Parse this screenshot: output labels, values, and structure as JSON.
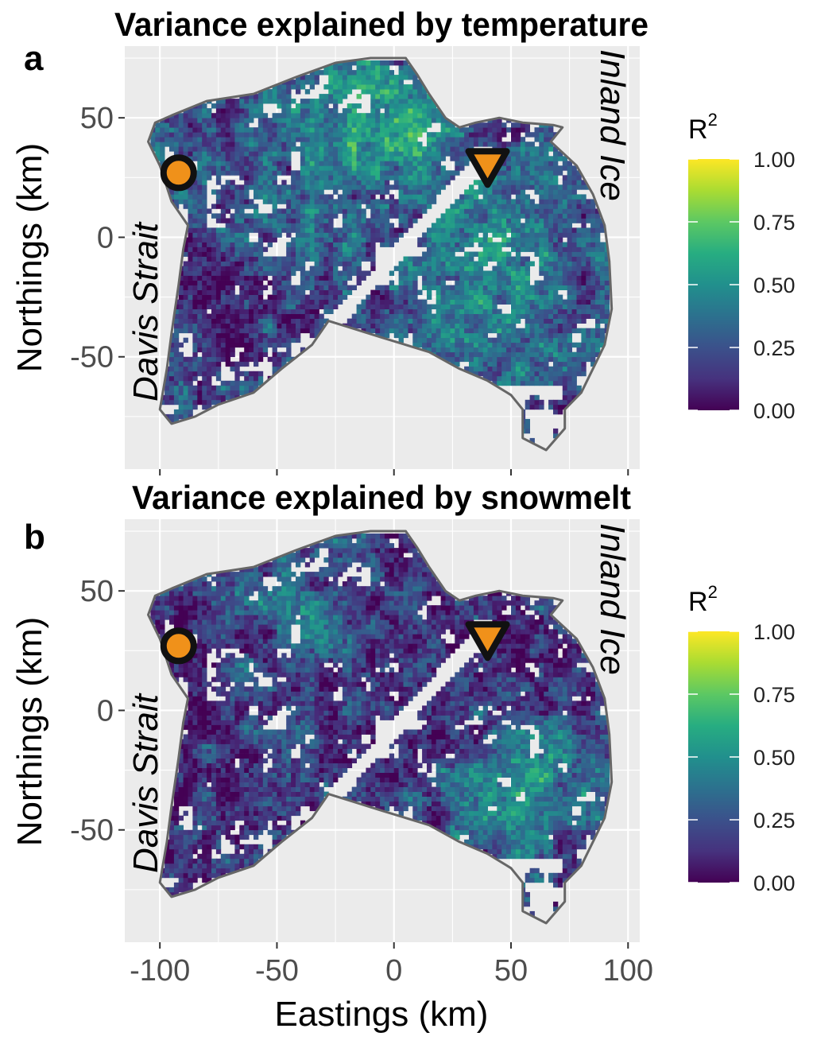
{
  "panels": [
    {
      "letter": "a",
      "title": "Variance explained by temperature",
      "pattern": "temperature"
    },
    {
      "letter": "b",
      "title": "Variance explained by snowmelt",
      "pattern": "snowmelt"
    }
  ],
  "axes": {
    "x_label": "Eastings (km)",
    "y_label": "Northings (km)",
    "x_ticks": [
      "-100",
      "-50",
      "0",
      "50",
      "100"
    ],
    "x_tick_values": [
      -100,
      -50,
      0,
      50,
      100
    ],
    "y_ticks": [
      "50",
      "0",
      "-50"
    ],
    "y_tick_values": [
      50,
      0,
      -50
    ],
    "x_range": [
      -115,
      105
    ],
    "y_range": [
      -97,
      80
    ]
  },
  "map_labels": {
    "west": "Davis Strait",
    "east": "Inland Ice"
  },
  "legend": {
    "title": "R",
    "superscript": "2",
    "ticks": [
      "1.00",
      "0.75",
      "0.50",
      "0.25",
      "0.00"
    ],
    "tick_values": [
      1.0,
      0.75,
      0.5,
      0.25,
      0.0
    ],
    "colormap": "viridis"
  },
  "markers": [
    {
      "shape": "circle",
      "x": -92,
      "y": 27,
      "fill": "#f0911a",
      "stroke": "#111111"
    },
    {
      "shape": "down-triangle",
      "x": 40,
      "y": 30,
      "fill": "#f0911a",
      "stroke": "#111111"
    }
  ],
  "colors": {
    "panel_background": "#ebebeb",
    "gridline": "#ffffff",
    "outline": "#666666",
    "marker_fill": "#f0911a"
  },
  "study_area_outline": [
    [
      -102,
      48
    ],
    [
      -95,
      51
    ],
    [
      -80,
      57
    ],
    [
      -60,
      60
    ],
    [
      -42,
      67
    ],
    [
      -25,
      73
    ],
    [
      -10,
      75
    ],
    [
      5,
      75
    ],
    [
      10,
      68
    ],
    [
      15,
      60
    ],
    [
      22,
      50
    ],
    [
      28,
      46
    ],
    [
      35,
      48
    ],
    [
      45,
      50
    ],
    [
      55,
      48
    ],
    [
      68,
      47
    ],
    [
      72,
      46
    ],
    [
      67,
      40
    ],
    [
      78,
      30
    ],
    [
      85,
      18
    ],
    [
      90,
      5
    ],
    [
      92,
      -10
    ],
    [
      93,
      -30
    ],
    [
      90,
      -45
    ],
    [
      85,
      -55
    ],
    [
      80,
      -65
    ],
    [
      73,
      -72
    ],
    [
      73,
      -80
    ],
    [
      65,
      -89
    ],
    [
      55,
      -84
    ],
    [
      55,
      -72
    ],
    [
      50,
      -66
    ],
    [
      40,
      -60
    ],
    [
      28,
      -55
    ],
    [
      15,
      -48
    ],
    [
      5,
      -45
    ],
    [
      -5,
      -42
    ],
    [
      -18,
      -38
    ],
    [
      -28,
      -35
    ],
    [
      -35,
      -45
    ],
    [
      -48,
      -55
    ],
    [
      -60,
      -65
    ],
    [
      -75,
      -70
    ],
    [
      -85,
      -75
    ],
    [
      -95,
      -78
    ],
    [
      -100,
      -72
    ],
    [
      -97,
      -55
    ],
    [
      -95,
      -40
    ],
    [
      -92,
      -20
    ],
    [
      -90,
      -5
    ],
    [
      -88,
      5
    ],
    [
      -95,
      15
    ],
    [
      -100,
      30
    ],
    [
      -105,
      40
    ]
  ]
}
